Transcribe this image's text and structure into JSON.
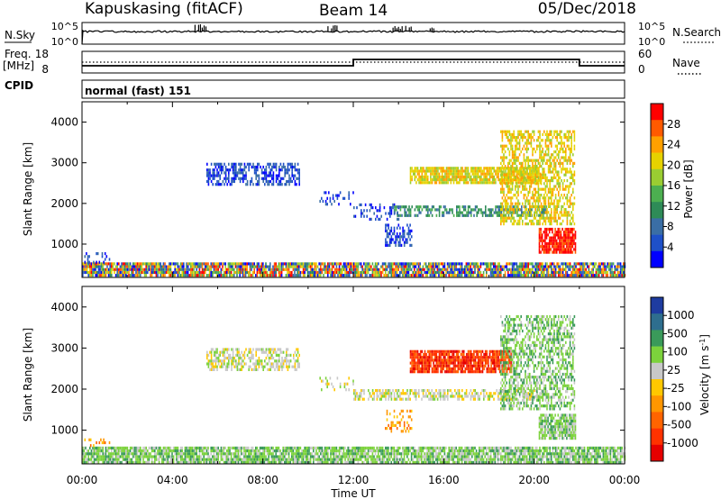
{
  "header": {
    "station": "Kapuskasing (fitACF)",
    "beam": "Beam 14",
    "date": "05/Dec/2018"
  },
  "nsky_panel": {
    "left_label": "N.Sky",
    "left_ticks": [
      "10^5",
      "10^0"
    ],
    "right_label": "N.Search",
    "right_ticks": [
      "10^5",
      "10^0"
    ]
  },
  "freq_panel": {
    "left_label_1": "Freq.",
    "left_label_2": "[MHz]",
    "left_ticks": [
      "18",
      "8"
    ],
    "right_label": "Nave",
    "right_ticks": [
      "60",
      "0"
    ]
  },
  "cpid_panel": {
    "label": "CPID",
    "mode": "normal (fast) 151"
  },
  "chart_data": [
    {
      "type": "heatmap",
      "title": "",
      "xlabel": "",
      "ylabel": "Slant Range [km]",
      "x_ticks": [
        "00:00",
        "04:00",
        "08:00",
        "12:00",
        "16:00",
        "20:00",
        "00:00"
      ],
      "xlim_hours": [
        0,
        24
      ],
      "y_ticks": [
        1000,
        2000,
        3000,
        4000
      ],
      "ylim_km": [
        180,
        4500
      ],
      "colorbar": {
        "label": "Power [dB]",
        "ticks": [
          "28",
          "24",
          "20",
          "16",
          "12",
          "8",
          "4"
        ],
        "colors": [
          "#ff0000",
          "#ff5a00",
          "#ffa000",
          "#e6d200",
          "#9acd32",
          "#4caf50",
          "#2e8b57",
          "#3a6ea5",
          "#1e50c8",
          "#0000ff"
        ]
      },
      "echo_regions": [
        {
          "t0": 0.0,
          "t1": 24.0,
          "r0": 200,
          "r1": 550,
          "density": "high",
          "value": "mixed"
        },
        {
          "t0": 0.1,
          "t1": 1.2,
          "r0": 550,
          "r1": 800,
          "density": "low",
          "value": "8"
        },
        {
          "t0": 5.5,
          "t1": 9.6,
          "r0": 2500,
          "r1": 3000,
          "density": "medium",
          "value": "8"
        },
        {
          "t0": 10.5,
          "t1": 12.0,
          "r0": 2000,
          "r1": 2300,
          "density": "low",
          "value": "8"
        },
        {
          "t0": 12.0,
          "t1": 14.0,
          "r0": 1600,
          "r1": 2000,
          "density": "low",
          "value": "8"
        },
        {
          "t0": 13.4,
          "t1": 14.6,
          "r0": 1000,
          "r1": 1500,
          "density": "medium",
          "value": "8"
        },
        {
          "t0": 13.8,
          "t1": 20.5,
          "r0": 1700,
          "r1": 1950,
          "density": "medium",
          "value": "12"
        },
        {
          "t0": 14.5,
          "t1": 20.3,
          "r0": 2500,
          "r1": 2900,
          "density": "high",
          "value": "20"
        },
        {
          "t0": 18.5,
          "t1": 21.8,
          "r0": 1500,
          "r1": 3800,
          "density": "medium",
          "value": "20"
        },
        {
          "t0": 20.2,
          "t1": 21.8,
          "r0": 800,
          "r1": 1400,
          "density": "high",
          "value": "28"
        }
      ]
    },
    {
      "type": "heatmap",
      "title": "",
      "xlabel": "Time UT",
      "ylabel": "Slant Range [km]",
      "x_ticks": [
        "00:00",
        "04:00",
        "08:00",
        "12:00",
        "16:00",
        "20:00",
        "00:00"
      ],
      "xlim_hours": [
        0,
        24
      ],
      "y_ticks": [
        1000,
        2000,
        3000,
        4000
      ],
      "ylim_km": [
        180,
        4500
      ],
      "colorbar": {
        "label": "Velocity [m s^-1]",
        "ticks": [
          "1000",
          "500",
          "100",
          "25",
          "-25",
          "-100",
          "-500",
          "-1000"
        ],
        "colors": [
          "#1e3ca0",
          "#2e6e8e",
          "#3a9a5a",
          "#7cd23c",
          "#c8c8c8",
          "#ffc800",
          "#ff9600",
          "#ff6400",
          "#ff3200",
          "#e60000"
        ]
      },
      "echo_regions": [
        {
          "t0": 0.0,
          "t1": 24.0,
          "r0": 200,
          "r1": 600,
          "density": "high",
          "value": "100"
        },
        {
          "t0": 0.1,
          "t1": 1.2,
          "r0": 600,
          "r1": 800,
          "density": "low",
          "value": "-100"
        },
        {
          "t0": 5.5,
          "t1": 9.6,
          "r0": 2500,
          "r1": 3000,
          "density": "medium",
          "value": "25"
        },
        {
          "t0": 10.5,
          "t1": 12.0,
          "r0": 2000,
          "r1": 2300,
          "density": "low",
          "value": "25"
        },
        {
          "t0": 12.0,
          "t1": 20.5,
          "r0": 1750,
          "r1": 2000,
          "density": "medium",
          "value": "25"
        },
        {
          "t0": 13.4,
          "t1": 14.6,
          "r0": 1000,
          "r1": 1500,
          "density": "low",
          "value": "-100"
        },
        {
          "t0": 14.5,
          "t1": 19.0,
          "r0": 2450,
          "r1": 2950,
          "density": "high",
          "value": "-500"
        },
        {
          "t0": 18.5,
          "t1": 21.8,
          "r0": 1500,
          "r1": 3800,
          "density": "medium",
          "value": "100"
        },
        {
          "t0": 20.2,
          "t1": 21.8,
          "r0": 800,
          "r1": 1400,
          "density": "high",
          "value": "100"
        }
      ]
    }
  ]
}
